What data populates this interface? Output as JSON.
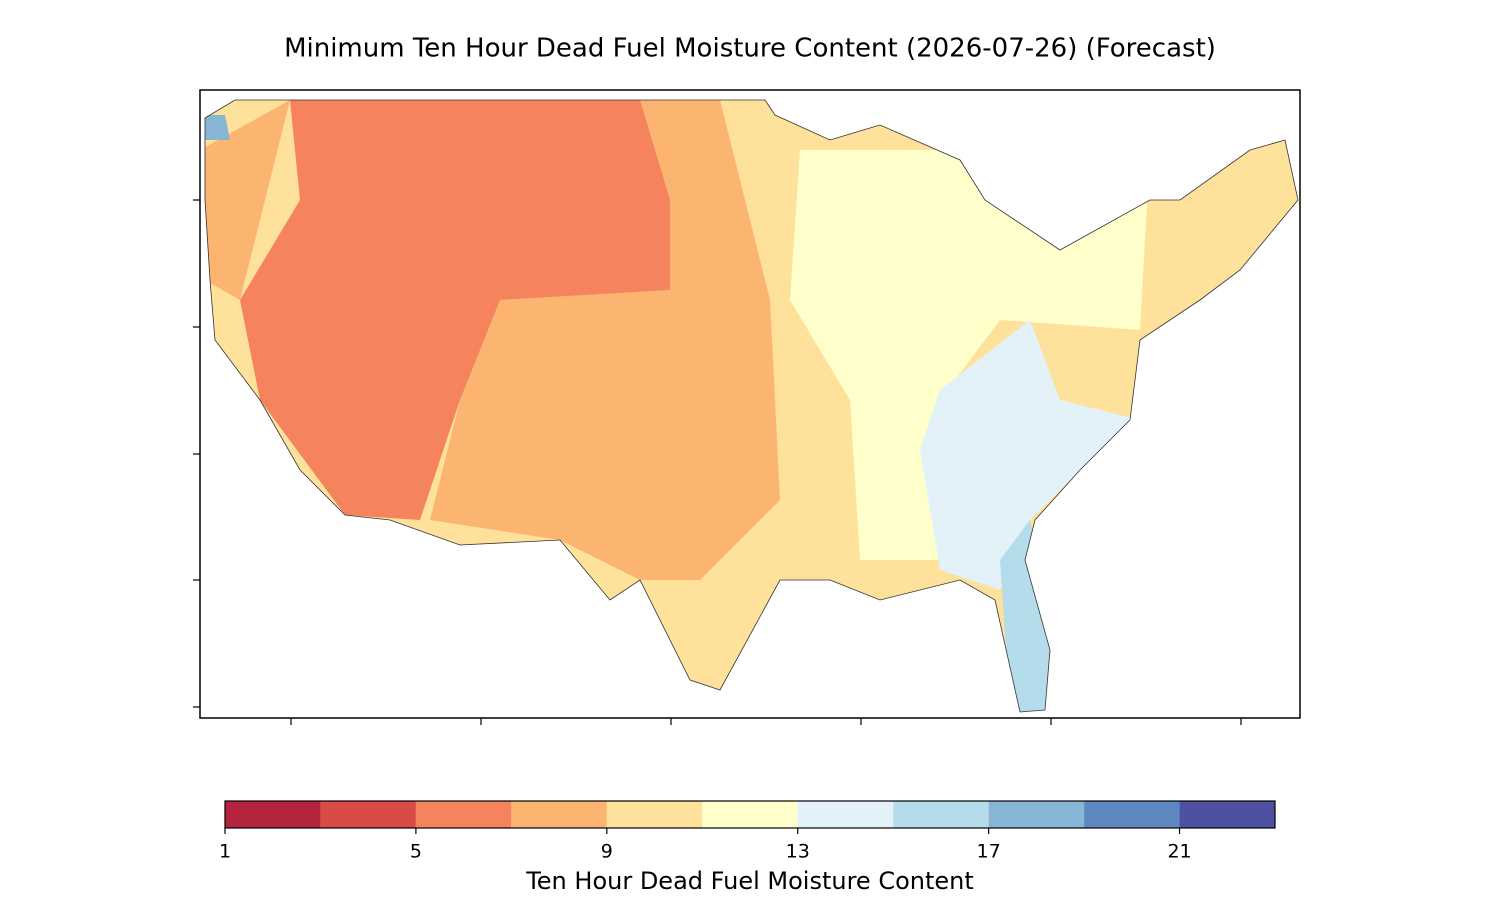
{
  "title": "Minimum Ten Hour Dead Fuel Moisture Content (2026-07-26) (Forecast)",
  "colorbar": {
    "label": "Ten Hour Dead Fuel Moisture Content",
    "bounds": [
      1,
      3,
      5,
      7,
      9,
      11,
      13,
      15,
      17,
      19,
      21,
      23
    ],
    "colors": [
      "#b5243f",
      "#da4b46",
      "#f4835e",
      "#fbb570",
      "#fee19a",
      "#ffffcc",
      "#e3f2f8",
      "#b5dcea",
      "#87b6d5",
      "#5f87bf",
      "#4e51a2"
    ],
    "ticks": [
      1,
      5,
      9,
      13,
      17,
      21
    ]
  }
}
